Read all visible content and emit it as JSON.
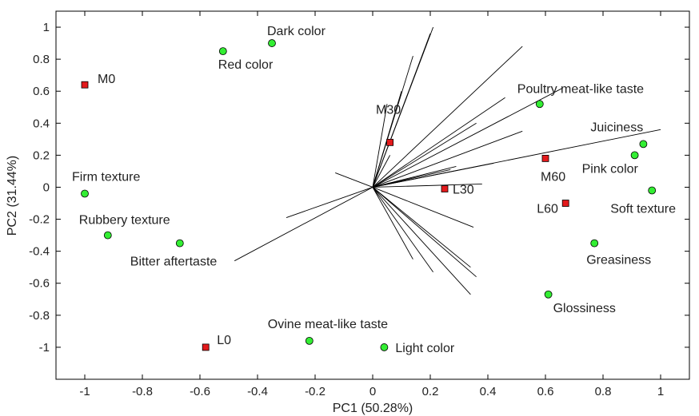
{
  "chart_data": {
    "type": "scatter",
    "title": "",
    "xlabel": "PC1 (50.28%)",
    "ylabel": "PC2 (31.44%)",
    "xlim": [
      -1.1,
      1.1
    ],
    "ylim": [
      -1.2,
      1.1
    ],
    "xticks": [
      -1,
      -0.8,
      -0.6,
      -0.4,
      -0.2,
      0,
      0.2,
      0.4,
      0.6,
      0.8,
      1
    ],
    "yticks": [
      -1,
      -0.8,
      -0.6,
      -0.4,
      -0.2,
      0,
      0.2,
      0.4,
      0.6,
      0.8,
      1
    ],
    "grid": false,
    "series": [
      {
        "marker": "square",
        "color": "#e31a1c",
        "points": [
          {
            "label": "M0",
            "x": -1.0,
            "y": 0.64
          },
          {
            "label": "M30",
            "x": 0.06,
            "y": 0.28
          },
          {
            "label": "M60",
            "x": 0.6,
            "y": 0.18
          },
          {
            "label": "L30",
            "x": 0.25,
            "y": -0.01
          },
          {
            "label": "L60",
            "x": 0.67,
            "y": -0.1
          },
          {
            "label": "L0",
            "x": -0.58,
            "y": -1.0
          }
        ]
      },
      {
        "marker": "circle",
        "color": "#33ee33",
        "points": [
          {
            "label": "Dark color",
            "x": -0.35,
            "y": 0.9
          },
          {
            "label": "Red color",
            "x": -0.52,
            "y": 0.85
          },
          {
            "label": "Poultry meat-like taste",
            "x": 0.58,
            "y": 0.52
          },
          {
            "label": "Juiciness",
            "x": 0.94,
            "y": 0.27
          },
          {
            "label": "Pink color",
            "x": 0.91,
            "y": 0.2
          },
          {
            "label": "Soft texture",
            "x": 0.97,
            "y": -0.02
          },
          {
            "label": "Firm texture",
            "x": -1.0,
            "y": -0.04
          },
          {
            "label": "Rubbery texture",
            "x": -0.92,
            "y": -0.3
          },
          {
            "label": "Bitter aftertaste",
            "x": -0.67,
            "y": -0.35
          },
          {
            "label": "Greasiness",
            "x": 0.77,
            "y": -0.35
          },
          {
            "label": "Glossiness",
            "x": 0.61,
            "y": -0.67
          },
          {
            "label": "Ovine meat-like taste",
            "x": -0.22,
            "y": -0.96
          },
          {
            "label": "Light color",
            "x": 0.04,
            "y": -1.0
          }
        ]
      }
    ],
    "loading_vectors": [
      [
        0.21,
        1.0
      ],
      [
        0.2,
        0.96
      ],
      [
        0.14,
        0.82
      ],
      [
        0.1,
        0.6
      ],
      [
        0.05,
        0.52
      ],
      [
        0.52,
        0.88
      ],
      [
        0.66,
        0.62
      ],
      [
        0.46,
        0.56
      ],
      [
        0.36,
        0.4
      ],
      [
        0.52,
        0.35
      ],
      [
        0.42,
        0.15
      ],
      [
        1.0,
        0.36
      ],
      [
        0.29,
        0.13
      ],
      [
        0.27,
        0.11
      ],
      [
        0.38,
        0.02
      ],
      [
        -0.13,
        0.09
      ],
      [
        0.06,
        0.2
      ],
      [
        0.35,
        -0.25
      ],
      [
        -0.3,
        -0.19
      ],
      [
        -0.48,
        -0.46
      ],
      [
        0.14,
        -0.45
      ],
      [
        0.21,
        -0.53
      ],
      [
        0.34,
        -0.5
      ],
      [
        0.36,
        -0.56
      ],
      [
        0.34,
        -0.67
      ]
    ]
  }
}
